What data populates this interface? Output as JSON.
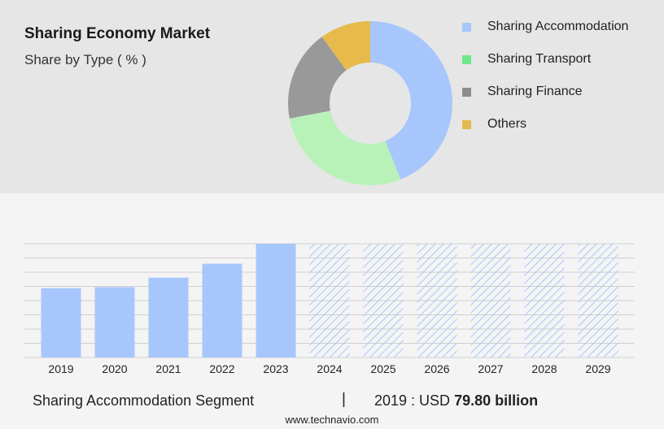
{
  "header": {
    "title": "Sharing Economy Market",
    "subtitle": "Share by Type ( % )"
  },
  "chart_data": [
    {
      "type": "pie",
      "style": "donut",
      "slices": [
        {
          "label": "Sharing Accommodation",
          "value": 44,
          "color": "#a7c7fc"
        },
        {
          "label": "Sharing Transport",
          "value": 28,
          "color": "#b9f2b9"
        },
        {
          "label": "Sharing Finance",
          "value": 18,
          "color": "#999999"
        },
        {
          "label": "Others",
          "value": 10,
          "color": "#e6bb4c"
        }
      ],
      "legend": [
        {
          "label": "Sharing Accommodation",
          "color": "#a7c7fc"
        },
        {
          "label": "Sharing Transport",
          "color": "#6ee78a"
        },
        {
          "label": "Sharing Finance",
          "color": "#8c8c8c"
        },
        {
          "label": "Others",
          "color": "#e5ba4d"
        }
      ],
      "legend_position": "right"
    },
    {
      "type": "bar",
      "categories": [
        "2019",
        "2020",
        "2021",
        "2022",
        "2023",
        "2024",
        "2025",
        "2026",
        "2027",
        "2028",
        "2029"
      ],
      "values": [
        79.8,
        81.0,
        92.0,
        108.0,
        131.0,
        null,
        null,
        null,
        null,
        null,
        null
      ],
      "forecast_categories": [
        "2024",
        "2025",
        "2026",
        "2027",
        "2028",
        "2029"
      ],
      "bar_color": "#a7c7fc",
      "forecast_style": "hatched",
      "grid": true,
      "ylim": [
        0,
        131
      ]
    }
  ],
  "footer": {
    "segment": "Sharing Accommodation Segment",
    "divider": "|",
    "year_label": "2019 : USD",
    "value": "79.80 billion",
    "source": "www.technavio.com"
  }
}
